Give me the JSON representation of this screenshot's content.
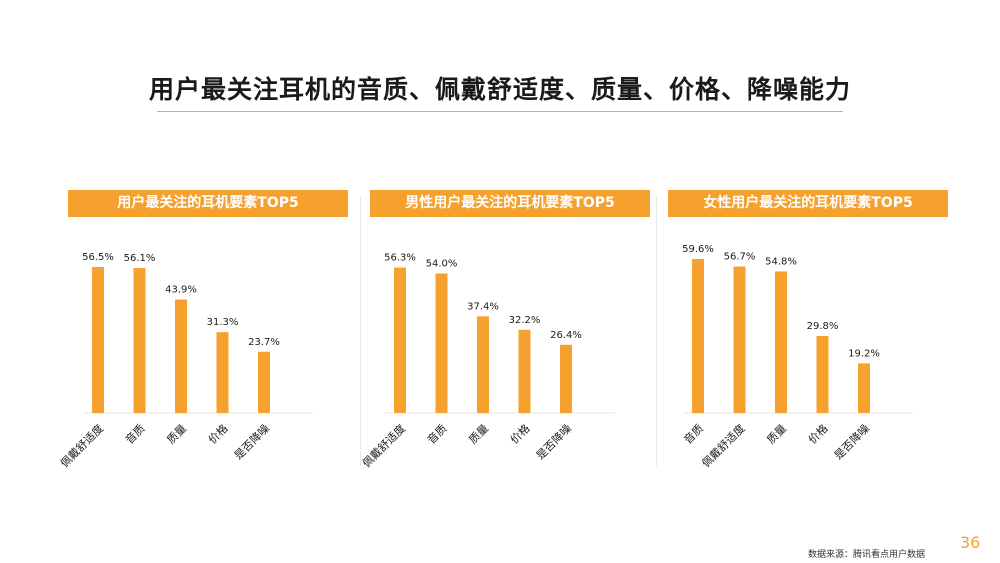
{
  "title": "用户最关注耳机的音质、佩戴舒适度、质量、价格、降噪能力",
  "page_number": "36",
  "source": "数据来源：腾讯看点用户数据",
  "colors": {
    "bar": "#f6a02e",
    "header": "#f6a02e",
    "rule": "#f4a064"
  },
  "chart_data": [
    {
      "type": "bar",
      "title": "用户最关注的耳机要素TOP5",
      "categories": [
        "佩戴舒适度",
        "音质",
        "质量",
        "价格",
        "是否降噪"
      ],
      "values": [
        56.5,
        56.1,
        43.9,
        31.3,
        23.7
      ],
      "value_labels": [
        "56.5%",
        "56.1%",
        "43.9%",
        "31.3%",
        "23.7%"
      ],
      "ylim": [
        0,
        60
      ]
    },
    {
      "type": "bar",
      "title": "男性用户最关注的耳机要素TOP5",
      "categories": [
        "佩戴舒适度",
        "音质",
        "质量",
        "价格",
        "是否降噪"
      ],
      "values": [
        56.3,
        54.0,
        37.4,
        32.2,
        26.4
      ],
      "value_labels": [
        "56.3%",
        "54.0%",
        "37.4%",
        "32.2%",
        "26.4%"
      ],
      "ylim": [
        0,
        60
      ]
    },
    {
      "type": "bar",
      "title": "女性用户最关注的耳机要素TOP5",
      "categories": [
        "音质",
        "佩戴舒适度",
        "质量",
        "价格",
        "是否降噪"
      ],
      "values": [
        59.6,
        56.7,
        54.8,
        29.8,
        19.2
      ],
      "value_labels": [
        "59.6%",
        "56.7%",
        "54.8%",
        "29.8%",
        "19.2%"
      ],
      "ylim": [
        0,
        60
      ]
    }
  ]
}
